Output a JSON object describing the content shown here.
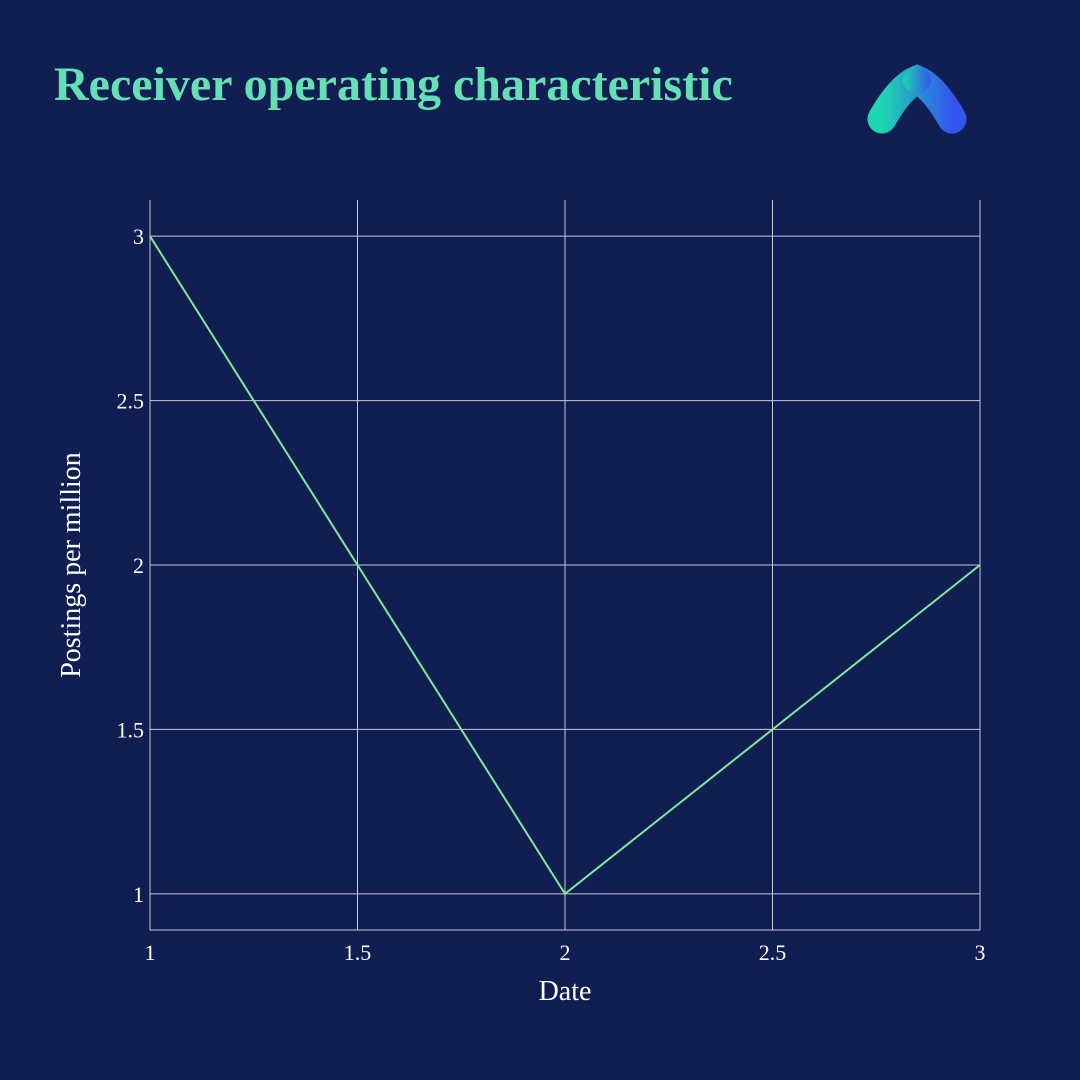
{
  "colors": {
    "background": "#111e52",
    "title": "#64e0b4",
    "text": "#ffffff",
    "grid": "#c8cbd8",
    "line": "#7fe89a",
    "logo_start": "#1ed6b0",
    "logo_end": "#3355ee"
  },
  "logo": {
    "icon": "brand-logo-icon"
  },
  "chart_data": {
    "type": "line",
    "title": "Receiver operating characteristic",
    "xlabel": "Date",
    "ylabel": "Postings per million",
    "x": [
      1,
      2,
      3
    ],
    "series": [
      {
        "values": [
          3,
          1,
          2
        ]
      }
    ],
    "xlim": [
      1,
      3
    ],
    "ylim": [
      0.89,
      3.11
    ],
    "xticks": [
      1,
      1.5,
      2,
      2.5,
      3
    ],
    "yticks": [
      1,
      1.5,
      2,
      2.5,
      3
    ],
    "xtick_labels": [
      "1",
      "1.5",
      "2",
      "2.5",
      "3"
    ],
    "ytick_labels": [
      "1",
      "1.5",
      "2",
      "2.5",
      "3"
    ],
    "grid": true,
    "legend": false
  }
}
